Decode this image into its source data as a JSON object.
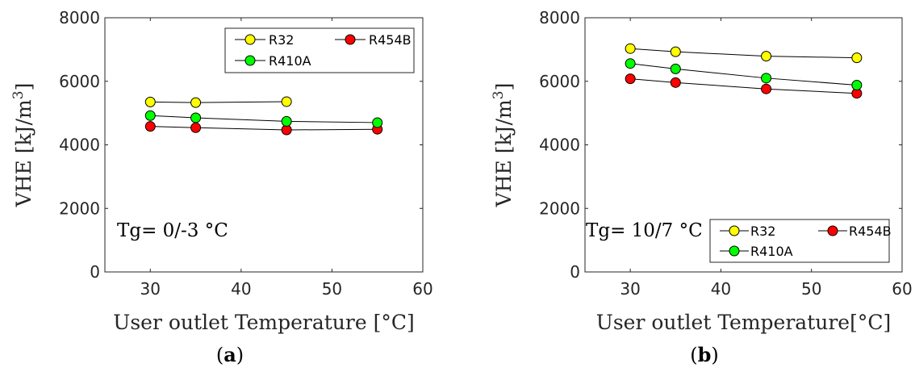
{
  "chart_data": [
    {
      "type": "line",
      "panel_label": "a",
      "annotation": "Tg= 0/-3 °C",
      "xlabel": "User outlet Temperature [°C]",
      "ylabel": "VHE [kJ/m3]",
      "ylabel_parts": {
        "base": "VHE [kJ/m",
        "sup": "3",
        "end": "]"
      },
      "xlim": [
        25,
        60
      ],
      "ylim": [
        0,
        8000
      ],
      "xticks": [
        30,
        40,
        50,
        60
      ],
      "yticks": [
        0,
        2000,
        4000,
        6000,
        8000
      ],
      "grid": false,
      "legend_position": "top-right",
      "legend_rows": [
        [
          "R32",
          "R454B"
        ],
        [
          "R410A"
        ]
      ],
      "series": [
        {
          "name": "R32",
          "color": "#ffff00",
          "x": [
            30,
            35,
            45
          ],
          "y": [
            5350,
            5330,
            5360
          ]
        },
        {
          "name": "R454B",
          "color": "#ff0000",
          "x": [
            30,
            35,
            45,
            55
          ],
          "y": [
            4580,
            4540,
            4470,
            4490
          ]
        },
        {
          "name": "R410A",
          "color": "#00ff00",
          "x": [
            30,
            35,
            45,
            55
          ],
          "y": [
            4920,
            4850,
            4740,
            4700
          ]
        }
      ]
    },
    {
      "type": "line",
      "panel_label": "b",
      "annotation": "Tg= 10/7 °C",
      "xlabel": "User outlet Temperature[°C]",
      "ylabel": "VHE [kJ/m3]",
      "ylabel_parts": {
        "base": "VHE [kJ/m",
        "sup": "3",
        "end": "]"
      },
      "xlim": [
        25,
        60
      ],
      "ylim": [
        0,
        8000
      ],
      "xticks": [
        30,
        40,
        50,
        60
      ],
      "yticks": [
        0,
        2000,
        4000,
        6000,
        8000
      ],
      "grid": false,
      "legend_position": "bottom-right",
      "legend_rows": [
        [
          "R32",
          "R454B"
        ],
        [
          "R410A"
        ]
      ],
      "series": [
        {
          "name": "R32",
          "color": "#ffff00",
          "x": [
            30,
            35,
            45,
            55
          ],
          "y": [
            7030,
            6930,
            6790,
            6740
          ]
        },
        {
          "name": "R454B",
          "color": "#ff0000",
          "x": [
            30,
            35,
            45,
            55
          ],
          "y": [
            6080,
            5960,
            5760,
            5620
          ]
        },
        {
          "name": "R410A",
          "color": "#00ff00",
          "x": [
            30,
            35,
            45,
            55
          ],
          "y": [
            6560,
            6390,
            6100,
            5880
          ]
        }
      ]
    }
  ]
}
